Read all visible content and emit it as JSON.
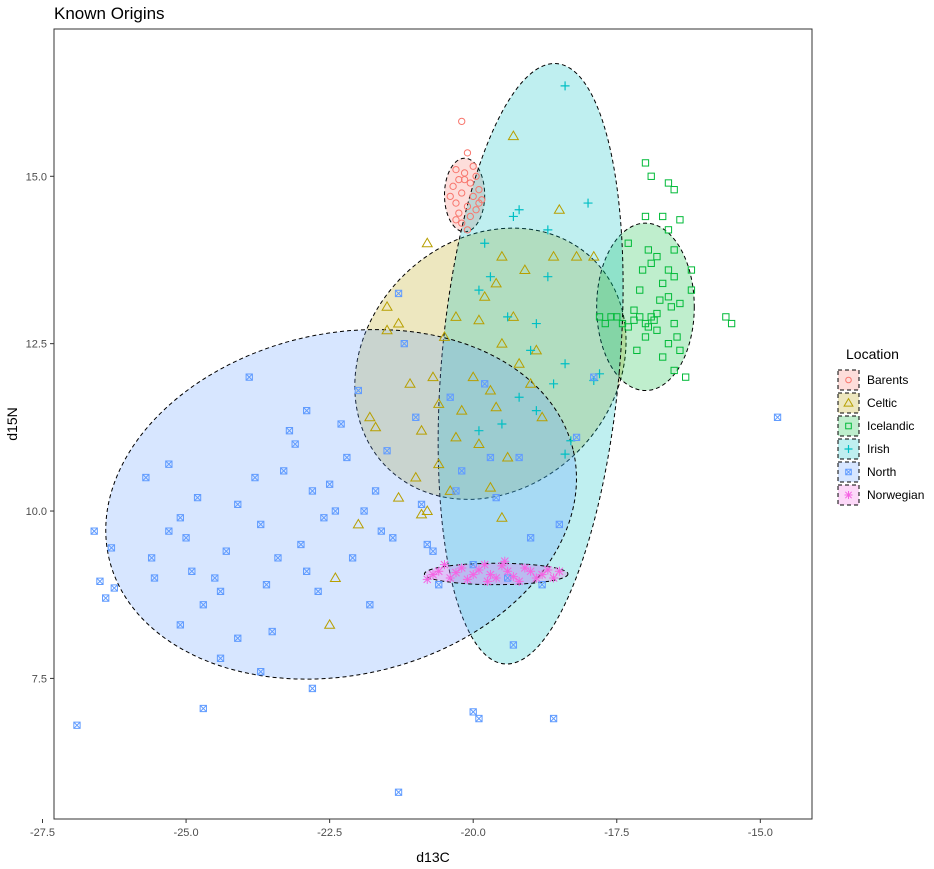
{
  "chart_data": {
    "type": "scatter",
    "title": "Known Origins",
    "xlabel": "d13C",
    "ylabel": "d15N",
    "xlim": [
      -27.3,
      -14.1
    ],
    "ylim": [
      5.4,
      17.2
    ],
    "xticks": [
      -27.5,
      -25.0,
      -22.5,
      -20.0,
      -17.5,
      -15.0
    ],
    "xtick_labels": [
      "-27.5",
      "-25.0",
      "-22.5",
      "-20.0",
      "-17.5",
      "-15.0"
    ],
    "yticks": [
      7.5,
      10.0,
      12.5,
      15.0
    ],
    "ytick_labels": [
      "7.5",
      "10.0",
      "12.5",
      "15.0"
    ],
    "grid": false,
    "legend": {
      "title": "Location",
      "position": "right"
    },
    "series": [
      {
        "name": "Barents",
        "color": "#F8766D",
        "marker": "circle",
        "ellipse": {
          "cx": -20.15,
          "cy": 14.72,
          "rx": 0.35,
          "ry": 0.55,
          "angle": 0
        },
        "points": [
          [
            -20.2,
            15.82
          ],
          [
            -20.1,
            15.35
          ],
          [
            -20.3,
            15.1
          ],
          [
            -20.15,
            15.05
          ],
          [
            -19.95,
            15.0
          ],
          [
            -20.25,
            14.95
          ],
          [
            -20.05,
            14.9
          ],
          [
            -20.35,
            14.85
          ],
          [
            -19.9,
            14.8
          ],
          [
            -20.2,
            14.75
          ],
          [
            -20.0,
            14.7
          ],
          [
            -20.3,
            14.6
          ],
          [
            -20.1,
            14.55
          ],
          [
            -19.95,
            14.5
          ],
          [
            -20.25,
            14.45
          ],
          [
            -20.05,
            14.4
          ],
          [
            -20.2,
            14.3
          ],
          [
            -19.9,
            14.6
          ],
          [
            -20.4,
            14.7
          ],
          [
            -20.1,
            14.2
          ],
          [
            -20.15,
            14.95
          ],
          [
            -19.85,
            14.65
          ],
          [
            -20.3,
            14.35
          ],
          [
            -20.0,
            15.15
          ]
        ]
      },
      {
        "name": "Celtic",
        "color": "#B79F00",
        "marker": "triangle",
        "ellipse": {
          "cx": -19.7,
          "cy": 12.2,
          "rx": 2.55,
          "ry": 1.85,
          "angle": 45
        },
        "points": [
          [
            -19.3,
            15.6
          ],
          [
            -18.5,
            14.5
          ],
          [
            -18.2,
            13.8
          ],
          [
            -18.6,
            13.8
          ],
          [
            -17.9,
            13.8
          ],
          [
            -20.8,
            14.0
          ],
          [
            -19.5,
            13.8
          ],
          [
            -19.8,
            13.2
          ],
          [
            -21.5,
            13.05
          ],
          [
            -21.3,
            12.8
          ],
          [
            -19.9,
            12.85
          ],
          [
            -20.5,
            12.6
          ],
          [
            -18.9,
            12.4
          ],
          [
            -19.5,
            12.5
          ],
          [
            -19.2,
            12.2
          ],
          [
            -20.7,
            12.0
          ],
          [
            -21.1,
            11.9
          ],
          [
            -19.0,
            11.9
          ],
          [
            -19.7,
            11.8
          ],
          [
            -20.6,
            11.6
          ],
          [
            -19.6,
            11.55
          ],
          [
            -20.2,
            11.5
          ],
          [
            -18.8,
            11.4
          ],
          [
            -21.8,
            11.4
          ],
          [
            -21.7,
            11.25
          ],
          [
            -20.3,
            11.1
          ],
          [
            -19.9,
            11.0
          ],
          [
            -19.4,
            10.8
          ],
          [
            -20.6,
            10.7
          ],
          [
            -21.0,
            10.5
          ],
          [
            -19.7,
            10.35
          ],
          [
            -20.4,
            10.3
          ],
          [
            -21.3,
            10.2
          ],
          [
            -20.8,
            10.0
          ],
          [
            -20.9,
            9.95
          ],
          [
            -19.5,
            9.9
          ],
          [
            -22.0,
            9.8
          ],
          [
            -22.4,
            9.0
          ],
          [
            -22.5,
            8.3
          ],
          [
            -20.3,
            12.9
          ],
          [
            -19.6,
            13.4
          ],
          [
            -20.0,
            12.0
          ],
          [
            -20.9,
            11.2
          ],
          [
            -19.3,
            12.9
          ],
          [
            -21.5,
            12.7
          ],
          [
            -19.1,
            13.6
          ]
        ]
      },
      {
        "name": "Icelandic",
        "color": "#00BA38",
        "marker": "square",
        "ellipse": {
          "cx": -17.0,
          "cy": 13.05,
          "rx": 0.85,
          "ry": 1.25,
          "angle": 0
        },
        "points": [
          [
            -17.0,
            15.2
          ],
          [
            -16.9,
            15.0
          ],
          [
            -16.6,
            14.9
          ],
          [
            -16.5,
            14.8
          ],
          [
            -17.0,
            14.4
          ],
          [
            -16.7,
            14.4
          ],
          [
            -16.4,
            14.35
          ],
          [
            -16.6,
            14.2
          ],
          [
            -17.3,
            14.0
          ],
          [
            -16.5,
            13.9
          ],
          [
            -16.8,
            13.8
          ],
          [
            -16.9,
            13.7
          ],
          [
            -16.6,
            13.6
          ],
          [
            -16.5,
            13.5
          ],
          [
            -16.7,
            13.4
          ],
          [
            -17.1,
            13.3
          ],
          [
            -16.6,
            13.2
          ],
          [
            -16.4,
            13.1
          ],
          [
            -17.2,
            13.0
          ],
          [
            -16.9,
            12.9
          ],
          [
            -16.5,
            12.8
          ],
          [
            -16.8,
            12.7
          ],
          [
            -17.0,
            12.6
          ],
          [
            -16.6,
            12.5
          ],
          [
            -16.4,
            12.4
          ],
          [
            -16.7,
            12.3
          ],
          [
            -16.5,
            12.1
          ],
          [
            -16.3,
            12.0
          ],
          [
            -17.5,
            12.9
          ],
          [
            -17.4,
            12.8
          ],
          [
            -17.3,
            12.75
          ],
          [
            -17.2,
            12.85
          ],
          [
            -17.1,
            12.9
          ],
          [
            -17.0,
            12.8
          ],
          [
            -16.95,
            12.75
          ],
          [
            -16.85,
            12.85
          ],
          [
            -16.8,
            12.95
          ],
          [
            -17.6,
            12.9
          ],
          [
            -17.7,
            12.8
          ],
          [
            -17.8,
            12.9
          ],
          [
            -15.6,
            12.9
          ],
          [
            -15.5,
            12.8
          ],
          [
            -16.2,
            13.6
          ],
          [
            -16.2,
            13.3
          ],
          [
            -17.05,
            13.6
          ],
          [
            -16.95,
            13.9
          ],
          [
            -16.75,
            13.15
          ],
          [
            -16.55,
            13.05
          ],
          [
            -16.45,
            12.6
          ],
          [
            -17.15,
            12.4
          ]
        ]
      },
      {
        "name": "Irish",
        "color": "#00BFC4",
        "marker": "plus",
        "ellipse": {
          "cx": -19.0,
          "cy": 12.2,
          "rx": 1.55,
          "ry": 4.5,
          "angle": -5
        },
        "points": [
          [
            -18.4,
            16.35
          ],
          [
            -18.0,
            14.6
          ],
          [
            -19.2,
            14.5
          ],
          [
            -19.3,
            14.4
          ],
          [
            -18.7,
            14.2
          ],
          [
            -19.8,
            14.0
          ],
          [
            -19.7,
            13.5
          ],
          [
            -18.7,
            13.5
          ],
          [
            -19.9,
            13.3
          ],
          [
            -19.4,
            12.9
          ],
          [
            -18.9,
            12.8
          ],
          [
            -17.8,
            12.05
          ],
          [
            -18.4,
            12.2
          ],
          [
            -18.6,
            11.9
          ],
          [
            -19.2,
            11.7
          ],
          [
            -19.5,
            11.3
          ],
          [
            -18.3,
            11.05
          ],
          [
            -19.9,
            11.2
          ],
          [
            -18.9,
            11.5
          ],
          [
            -18.4,
            10.85
          ],
          [
            -17.9,
            11.95
          ],
          [
            -19.0,
            12.4
          ]
        ]
      },
      {
        "name": "North",
        "color": "#619CFF",
        "marker": "square-cross",
        "ellipse": {
          "cx": -22.3,
          "cy": 10.1,
          "rx": 4.15,
          "ry": 2.55,
          "angle": 13
        },
        "points": [
          [
            -26.9,
            6.8
          ],
          [
            -26.6,
            9.7
          ],
          [
            -26.5,
            8.95
          ],
          [
            -26.4,
            8.7
          ],
          [
            -26.3,
            9.45
          ],
          [
            -26.25,
            8.85
          ],
          [
            -25.7,
            10.5
          ],
          [
            -25.6,
            9.3
          ],
          [
            -25.55,
            9.0
          ],
          [
            -25.3,
            10.7
          ],
          [
            -25.1,
            9.9
          ],
          [
            -25.0,
            9.6
          ],
          [
            -24.9,
            9.1
          ],
          [
            -24.7,
            8.6
          ],
          [
            -24.5,
            9.0
          ],
          [
            -24.4,
            8.8
          ],
          [
            -24.3,
            9.4
          ],
          [
            -24.1,
            10.1
          ],
          [
            -23.9,
            12.0
          ],
          [
            -23.8,
            10.5
          ],
          [
            -23.7,
            9.8
          ],
          [
            -23.6,
            8.9
          ],
          [
            -23.5,
            8.2
          ],
          [
            -23.3,
            10.6
          ],
          [
            -23.2,
            11.2
          ],
          [
            -23.0,
            9.5
          ],
          [
            -22.9,
            11.5
          ],
          [
            -22.8,
            10.3
          ],
          [
            -22.7,
            8.8
          ],
          [
            -22.6,
            9.9
          ],
          [
            -22.5,
            10.4
          ],
          [
            -22.3,
            11.3
          ],
          [
            -22.2,
            10.8
          ],
          [
            -22.1,
            9.3
          ],
          [
            -22.0,
            11.8
          ],
          [
            -21.9,
            10.0
          ],
          [
            -21.8,
            8.6
          ],
          [
            -21.6,
            9.7
          ],
          [
            -21.5,
            10.9
          ],
          [
            -21.3,
            13.25
          ],
          [
            -21.2,
            12.5
          ],
          [
            -21.0,
            11.4
          ],
          [
            -20.9,
            10.1
          ],
          [
            -20.8,
            9.5
          ],
          [
            -20.6,
            8.9
          ],
          [
            -20.4,
            11.7
          ],
          [
            -20.2,
            10.6
          ],
          [
            -20.0,
            9.2
          ],
          [
            -19.8,
            11.9
          ],
          [
            -19.6,
            10.2
          ],
          [
            -19.4,
            9.0
          ],
          [
            -19.2,
            10.8
          ],
          [
            -19.0,
            9.6
          ],
          [
            -18.8,
            8.9
          ],
          [
            -18.5,
            9.8
          ],
          [
            -18.2,
            11.1
          ],
          [
            -17.9,
            12.0
          ],
          [
            -14.7,
            11.4
          ],
          [
            -21.3,
            5.8
          ],
          [
            -20.0,
            7.0
          ],
          [
            -19.9,
            6.9
          ],
          [
            -18.6,
            6.9
          ],
          [
            -24.7,
            7.05
          ],
          [
            -19.3,
            8.0
          ],
          [
            -24.4,
            7.8
          ],
          [
            -25.1,
            8.3
          ],
          [
            -22.8,
            7.35
          ],
          [
            -23.7,
            7.6
          ],
          [
            -24.1,
            8.1
          ],
          [
            -21.7,
            10.3
          ],
          [
            -22.4,
            10.0
          ],
          [
            -23.4,
            9.3
          ],
          [
            -24.8,
            10.2
          ],
          [
            -25.3,
            9.7
          ],
          [
            -21.4,
            9.6
          ],
          [
            -20.7,
            9.4
          ],
          [
            -20.3,
            10.3
          ],
          [
            -19.7,
            10.8
          ],
          [
            -22.9,
            9.1
          ],
          [
            -23.1,
            11.0
          ]
        ]
      },
      {
        "name": "Norwegian",
        "color": "#F564E3",
        "marker": "star",
        "ellipse": {
          "cx": -19.6,
          "cy": 9.06,
          "rx": 1.25,
          "ry": 0.16,
          "angle": 0
        },
        "points": [
          [
            -20.6,
            9.1
          ],
          [
            -20.4,
            9.0
          ],
          [
            -20.2,
            9.15
          ],
          [
            -20.0,
            9.05
          ],
          [
            -19.8,
            9.2
          ],
          [
            -19.6,
            9.0
          ],
          [
            -19.4,
            9.1
          ],
          [
            -19.2,
            8.95
          ],
          [
            -19.0,
            9.1
          ],
          [
            -18.8,
            9.05
          ],
          [
            -18.6,
            9.0
          ],
          [
            -18.5,
            9.1
          ],
          [
            -20.8,
            8.98
          ],
          [
            -20.5,
            9.2
          ],
          [
            -20.1,
            8.98
          ],
          [
            -19.9,
            9.12
          ],
          [
            -19.7,
            9.05
          ],
          [
            -19.5,
            9.18
          ],
          [
            -19.3,
            9.02
          ],
          [
            -19.1,
            9.15
          ],
          [
            -18.9,
            9.0
          ],
          [
            -20.3,
            9.08
          ],
          [
            -19.75,
            8.95
          ],
          [
            -19.45,
            9.25
          ],
          [
            -20.7,
            9.05
          ],
          [
            -18.7,
            9.12
          ]
        ]
      }
    ]
  }
}
